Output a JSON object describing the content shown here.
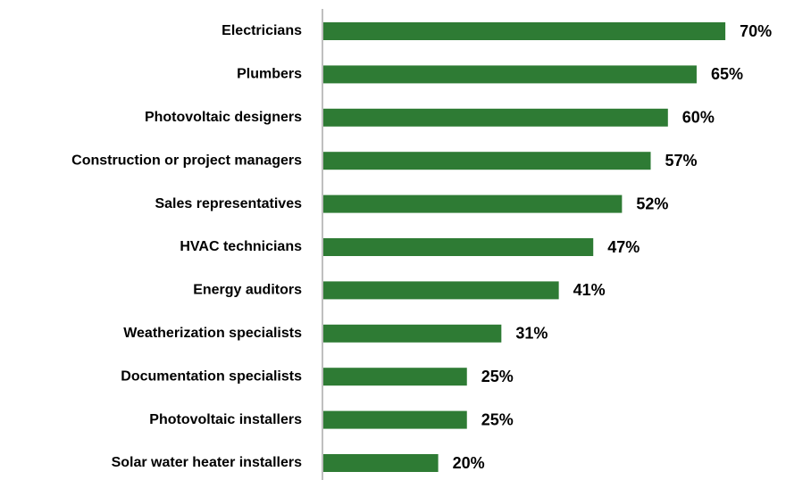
{
  "chart_data": {
    "type": "bar",
    "orientation": "horizontal",
    "categories": [
      "Electricians",
      "Plumbers",
      "Photovoltaic designers",
      "Construction or project managers",
      "Sales representatives",
      "HVAC technicians",
      "Energy auditors",
      "Weatherization specialists",
      "Documentation specialists",
      "Photovoltaic installers",
      "Solar water heater installers"
    ],
    "values": [
      70,
      65,
      60,
      57,
      52,
      47,
      41,
      31,
      25,
      25,
      20
    ],
    "value_labels": [
      "70%",
      "65%",
      "60%",
      "57%",
      "52%",
      "47%",
      "41%",
      "31%",
      "25%",
      "25%",
      "20%"
    ],
    "color": "#2e7b34"
  }
}
